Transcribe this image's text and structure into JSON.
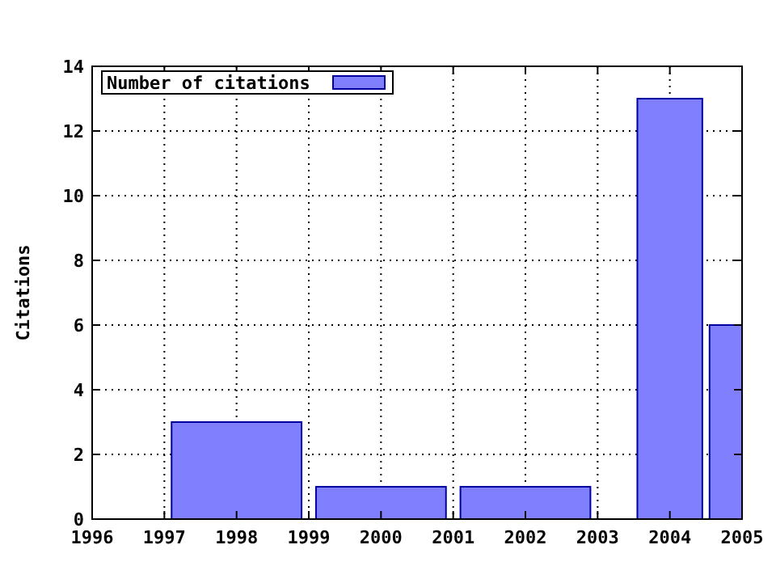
{
  "chart_data": {
    "type": "bar",
    "ylabel": "Citations",
    "x": [
      1998,
      2000,
      2002,
      2004,
      2005
    ],
    "series": [
      {
        "name": "Number of citations",
        "color": "#8080ff",
        "values": [
          3,
          1,
          1,
          13,
          6
        ]
      }
    ],
    "xlim": [
      1996,
      2005
    ],
    "xticks": [
      1996,
      1997,
      1998,
      1999,
      2000,
      2001,
      2002,
      2003,
      2004,
      2005
    ],
    "ylim": [
      0,
      14
    ],
    "yticks": [
      0,
      2,
      4,
      6,
      8,
      10,
      12,
      14
    ],
    "grid": true,
    "legend": "top left"
  }
}
